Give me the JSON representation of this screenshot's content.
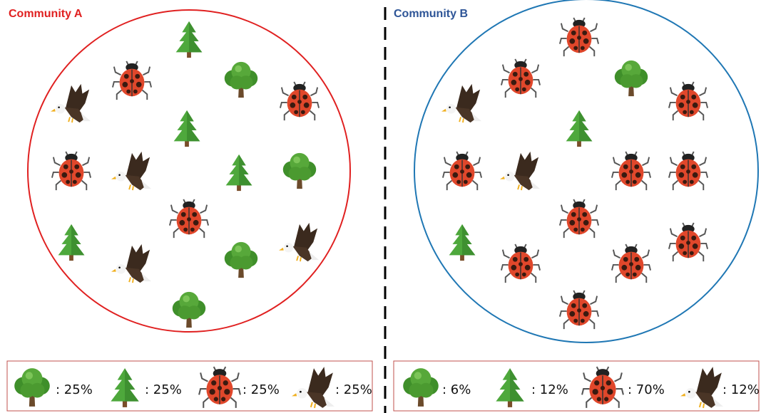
{
  "communities": [
    {
      "title": "Community A",
      "legend": [
        ": 25%",
        ": 25%",
        ": 25%",
        ": 25%"
      ]
    },
    {
      "title": "Community B",
      "legend": [
        ": 6%",
        ": 12%",
        ": 70%",
        ": 12%"
      ]
    }
  ]
}
